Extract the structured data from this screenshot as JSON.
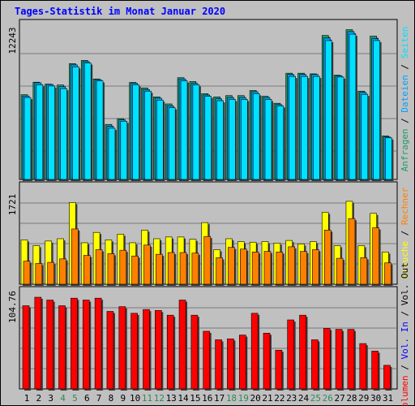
{
  "title": "Tages-Statistik im Monat Januar 2020",
  "colors": {
    "background": "#c0c0c0",
    "title": "#0000ff",
    "grid": "#7a7a7a",
    "anfragen": "#1f9a6a",
    "dateien": "#00a0ff",
    "seiten": "#00e0ff",
    "besuche": "#ffff00",
    "rechner": "#ff8000",
    "volumen": "#ff0000",
    "vol_in": "#0000ff",
    "vol_out": "#000000",
    "axis_weekend": "#2e8b57",
    "axis_weekday": "#000000"
  },
  "chart_data": [
    {
      "type": "bar",
      "name": "requests-panel",
      "ylabel_max": "12243",
      "ylim": [
        0,
        12243
      ],
      "legend": [
        "Anfragen",
        "Dateien",
        "Seiten"
      ],
      "x": [
        1,
        2,
        3,
        4,
        5,
        6,
        7,
        8,
        9,
        10,
        11,
        12,
        13,
        14,
        15,
        16,
        17,
        18,
        19,
        20,
        21,
        22,
        23,
        24,
        25,
        26,
        27,
        28,
        29,
        30,
        31
      ],
      "series": [
        {
          "name": "Anfragen",
          "values": [
            6620,
            7600,
            7450,
            7380,
            9050,
            9300,
            7850,
            4300,
            4750,
            7580,
            7150,
            6450,
            5900,
            7950,
            7650,
            6700,
            6450,
            6550,
            6550,
            6950,
            6500,
            5950,
            8300,
            8300,
            8250,
            11250,
            8150,
            11700,
            6900,
            11200,
            3400
          ]
        },
        {
          "name": "Dateien",
          "values": [
            6520,
            7550,
            7420,
            7250,
            8950,
            9200,
            7800,
            4150,
            4650,
            7520,
            7020,
            6350,
            5750,
            7850,
            7500,
            6600,
            6300,
            6400,
            6400,
            6850,
            6400,
            5850,
            8200,
            8200,
            8200,
            11050,
            8100,
            11550,
            6800,
            11000,
            3320
          ]
        },
        {
          "name": "Seiten",
          "values": [
            6400,
            7400,
            7300,
            7100,
            8800,
            9100,
            7700,
            4000,
            4550,
            7400,
            6900,
            6200,
            5600,
            7700,
            7400,
            6500,
            6150,
            6250,
            6250,
            6700,
            6250,
            5750,
            8050,
            8050,
            8050,
            10850,
            8000,
            11350,
            6650,
            10850,
            3250
          ]
        }
      ]
    },
    {
      "type": "bar",
      "name": "visits-panel",
      "ylabel_max": "1721",
      "ylim": [
        0,
        1721
      ],
      "legend": [
        "Besuche",
        "Rechner"
      ],
      "x": [
        1,
        2,
        3,
        4,
        5,
        6,
        7,
        8,
        9,
        10,
        11,
        12,
        13,
        14,
        15,
        16,
        17,
        18,
        19,
        20,
        21,
        22,
        23,
        24,
        25,
        26,
        27,
        28,
        29,
        30,
        31
      ],
      "series": [
        {
          "name": "Besuche",
          "values": [
            770,
            670,
            750,
            790,
            1420,
            720,
            900,
            770,
            870,
            720,
            940,
            790,
            820,
            820,
            780,
            1070,
            600,
            790,
            740,
            730,
            740,
            715,
            760,
            700,
            740,
            1250,
            670,
            1440,
            670,
            1230,
            560
          ]
        },
        {
          "name": "Rechner",
          "values": [
            400,
            360,
            380,
            440,
            960,
            500,
            600,
            530,
            590,
            490,
            680,
            520,
            550,
            550,
            540,
            830,
            460,
            640,
            610,
            560,
            570,
            560,
            650,
            570,
            600,
            940,
            450,
            1140,
            460,
            980,
            370
          ]
        }
      ]
    },
    {
      "type": "bar",
      "name": "volume-panel",
      "ylabel_max": "104.76",
      "ylim": [
        0,
        104.76
      ],
      "legend": [
        "Volumen",
        "Vol. In",
        "Vol. Out"
      ],
      "x": [
        1,
        2,
        3,
        4,
        5,
        6,
        7,
        8,
        9,
        10,
        11,
        12,
        13,
        14,
        15,
        16,
        17,
        18,
        19,
        20,
        21,
        22,
        23,
        24,
        25,
        26,
        27,
        28,
        29,
        30,
        31
      ],
      "series": [
        {
          "name": "Volumen",
          "values": [
            88,
            97,
            94,
            88,
            96,
            94,
            96,
            82,
            87,
            80,
            84,
            83,
            78,
            94,
            78,
            61,
            52,
            53,
            57,
            80,
            59,
            41,
            73,
            78,
            52,
            64,
            63,
            63,
            48,
            40,
            25
          ]
        }
      ]
    }
  ],
  "x_labels": [
    "1",
    "2",
    "3",
    "4",
    "5",
    "6",
    "7",
    "8",
    "9",
    "10",
    "11",
    "12",
    "13",
    "14",
    "15",
    "16",
    "17",
    "18",
    "19",
    "20",
    "21",
    "22",
    "23",
    "24",
    "25",
    "26",
    "27",
    "28",
    "29",
    "30",
    "31"
  ],
  "weekend_days": [
    4,
    5,
    11,
    12,
    18,
    19,
    25,
    26
  ],
  "right_legend": {
    "panel1": [
      {
        "text": "Anfragen",
        "color": "#1f9a6a"
      },
      {
        "text": " / ",
        "color": "#000000"
      },
      {
        "text": "Dateien",
        "color": "#00a0ff"
      },
      {
        "text": " / ",
        "color": "#000000"
      },
      {
        "text": "Seiten",
        "color": "#00e0ff"
      }
    ],
    "panel2": [
      {
        "text": "Besuche",
        "color": "#ffff00"
      },
      {
        "text": " / ",
        "color": "#000000"
      },
      {
        "text": "Rechner",
        "color": "#ff8000"
      }
    ],
    "panel3": [
      {
        "text": "Volumen",
        "color": "#ff0000"
      },
      {
        "text": " / ",
        "color": "#000000"
      },
      {
        "text": "Vol. In",
        "color": "#0000ff"
      },
      {
        "text": " / ",
        "color": "#000000"
      },
      {
        "text": "Vol. Out",
        "color": "#000000"
      }
    ]
  }
}
